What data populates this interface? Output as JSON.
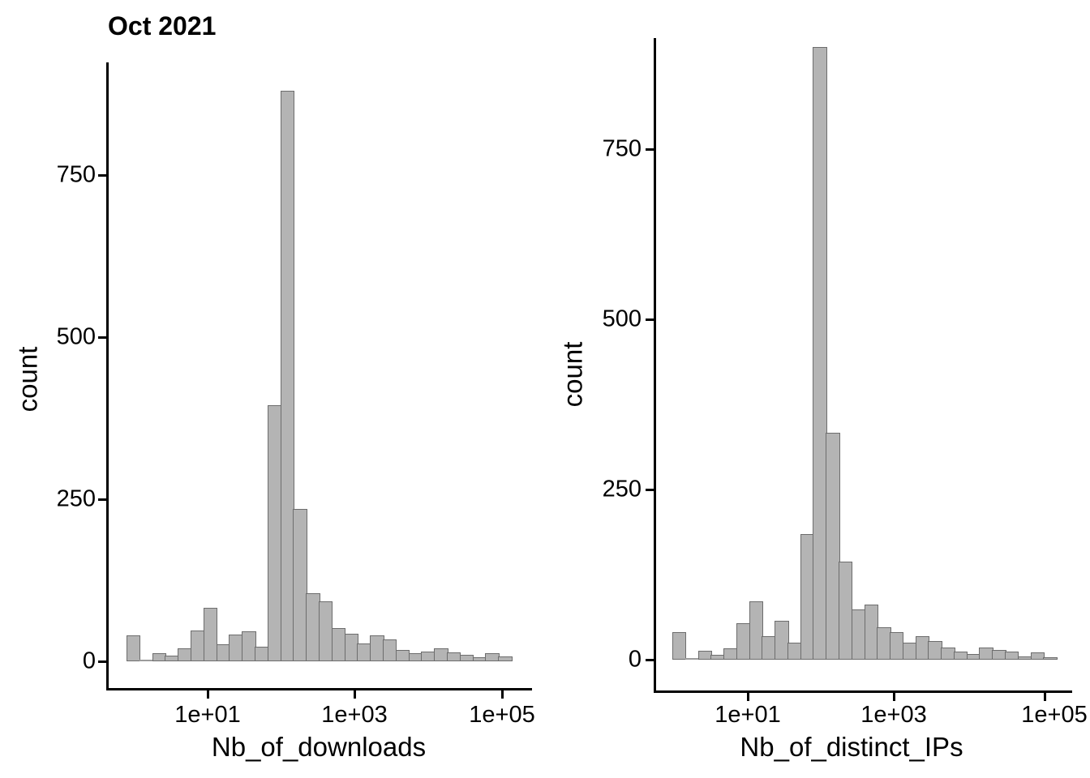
{
  "page": {
    "background": "#ffffff",
    "axis_color": "#000000",
    "bar_fill": "#b4b4b4",
    "bar_stroke": "#6d6d6d"
  },
  "chart_data": [
    {
      "type": "bar",
      "subtype": "histogram",
      "title": "Oct 2021",
      "xlabel": "Nb_of_downloads",
      "ylabel": "count",
      "x_scale": "log10",
      "x_tick_labels": [
        "1e+01",
        "1e+03",
        "1e+05"
      ],
      "x_tick_log10_values": [
        1,
        3,
        5
      ],
      "y_tick_labels": [
        "0",
        "250",
        "500",
        "750"
      ],
      "y_tick_values": [
        0,
        250,
        500,
        750
      ],
      "ylim": [
        0,
        925
      ],
      "grid": "off",
      "legend": "none",
      "bins_log10": {
        "start": -0.102,
        "width": 0.174,
        "n": 30
      },
      "counts": [
        40,
        0,
        12,
        9,
        20,
        47,
        83,
        26,
        41,
        46,
        22,
        395,
        880,
        235,
        105,
        93,
        51,
        43,
        28,
        40,
        34,
        17,
        13,
        15,
        20,
        14,
        10,
        6,
        12,
        7
      ]
    },
    {
      "type": "bar",
      "subtype": "histogram",
      "title": "",
      "xlabel": "Nb_of_distinct_IPs",
      "ylabel": "count",
      "x_scale": "log10",
      "x_tick_labels": [
        "1e+01",
        "1e+03",
        "1e+05"
      ],
      "x_tick_log10_values": [
        1,
        3,
        5
      ],
      "y_tick_labels": [
        "0",
        "250",
        "500",
        "750"
      ],
      "y_tick_values": [
        0,
        250,
        500,
        750
      ],
      "ylim": [
        0,
        950
      ],
      "grid": "off",
      "legend": "none",
      "bins_log10": {
        "start": -0.036,
        "width": 0.176,
        "n": 30
      },
      "counts": [
        40,
        0,
        13,
        7,
        17,
        54,
        86,
        35,
        57,
        25,
        185,
        900,
        333,
        144,
        74,
        81,
        48,
        41,
        25,
        35,
        27,
        18,
        12,
        8,
        18,
        14,
        12,
        5,
        11,
        3
      ]
    }
  ]
}
